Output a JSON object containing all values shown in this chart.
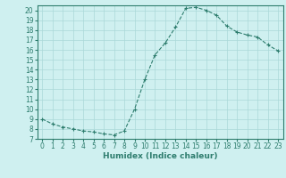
{
  "x": [
    0,
    1,
    2,
    3,
    4,
    5,
    6,
    7,
    8,
    9,
    10,
    11,
    12,
    13,
    14,
    15,
    16,
    17,
    18,
    19,
    20,
    21,
    22,
    23
  ],
  "y": [
    9,
    8.5,
    8.2,
    8.0,
    7.8,
    7.7,
    7.5,
    7.4,
    7.8,
    10.0,
    13.0,
    15.5,
    16.7,
    18.3,
    20.2,
    20.3,
    20.0,
    19.5,
    18.4,
    17.8,
    17.5,
    17.3,
    16.5,
    15.9
  ],
  "line_color": "#2e7d6e",
  "marker": "+",
  "marker_size": 3,
  "xlabel": "Humidex (Indice chaleur)",
  "xlim": [
    -0.5,
    23.5
  ],
  "ylim": [
    7,
    20.5
  ],
  "yticks": [
    7,
    8,
    9,
    10,
    11,
    12,
    13,
    14,
    15,
    16,
    17,
    18,
    19,
    20
  ],
  "xticks": [
    0,
    1,
    2,
    3,
    4,
    5,
    6,
    7,
    8,
    9,
    10,
    11,
    12,
    13,
    14,
    15,
    16,
    17,
    18,
    19,
    20,
    21,
    22,
    23
  ],
  "bg_color": "#cff0f0",
  "grid_color": "#aad8d8",
  "line_width": 0.8,
  "axis_color": "#2e7d6e",
  "tick_color": "#2e7d6e",
  "label_color": "#2e7d6e",
  "tick_fontsize": 5.5,
  "xlabel_fontsize": 6.5
}
